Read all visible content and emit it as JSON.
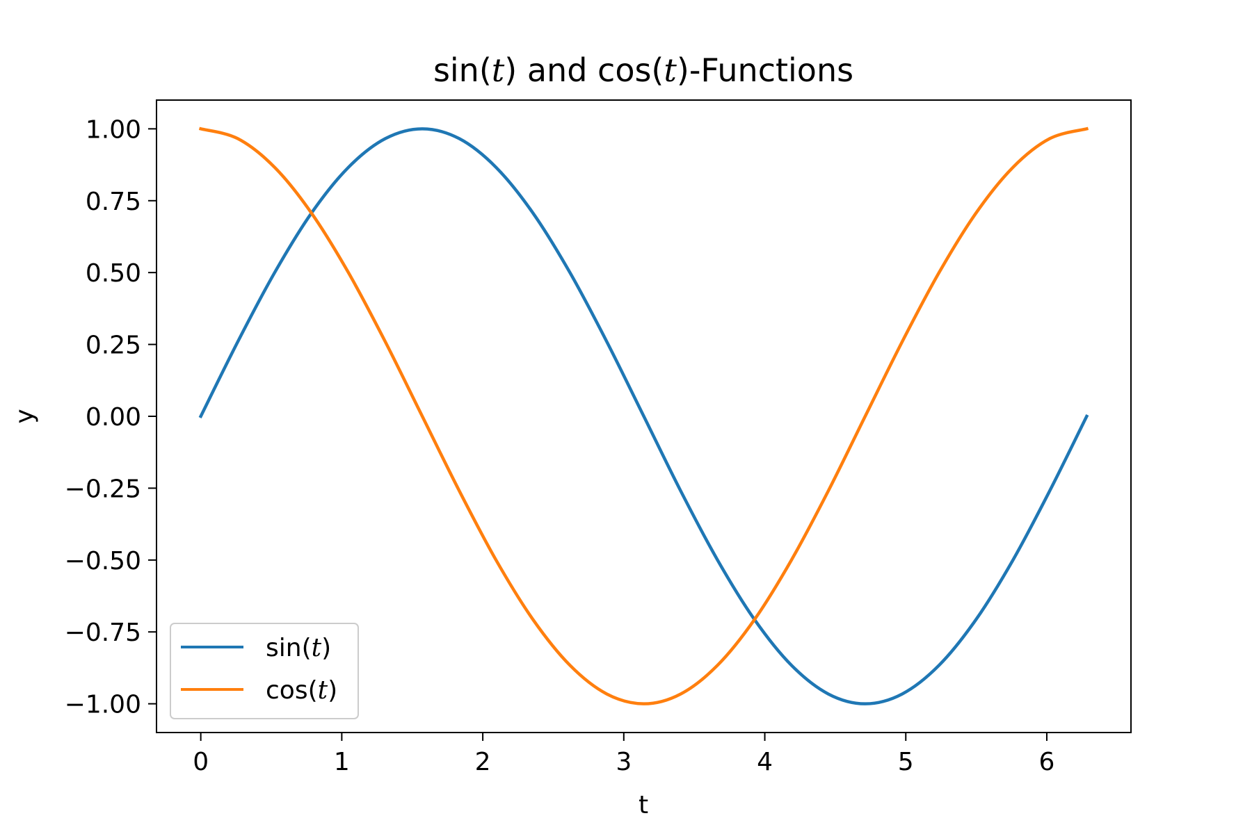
{
  "chart_data": {
    "type": "line",
    "title": {
      "parts": [
        "sin(",
        "t",
        ") and cos(",
        "t",
        ")-Functions"
      ]
    },
    "xlabel": "t",
    "ylabel": "y",
    "xlim": [
      -0.314,
      6.597
    ],
    "ylim": [
      -1.1,
      1.1
    ],
    "xticks": [
      0,
      1,
      2,
      3,
      4,
      5,
      6
    ],
    "xtick_labels": [
      "0",
      "1",
      "2",
      "3",
      "4",
      "5",
      "6"
    ],
    "yticks": [
      1.0,
      0.75,
      0.5,
      0.25,
      0.0,
      -0.25,
      -0.5,
      -0.75,
      -1.0
    ],
    "ytick_labels": [
      "1.00",
      "0.75",
      "0.50",
      "0.25",
      "0.00",
      "−0.25",
      "−0.50",
      "−0.75",
      "−1.00"
    ],
    "grid": false,
    "legend_position": "lower-left",
    "series": [
      {
        "legend_parts": [
          "sin(",
          "t",
          ")"
        ],
        "color": "#1f77b4",
        "x": [
          0,
          0.262,
          0.524,
          0.785,
          1.047,
          1.309,
          1.571,
          1.833,
          2.094,
          2.356,
          2.618,
          2.88,
          3.142,
          3.403,
          3.665,
          3.927,
          4.189,
          4.451,
          4.712,
          4.974,
          5.236,
          5.498,
          5.76,
          6.021,
          6.283
        ],
        "y": [
          0.0,
          0.259,
          0.5,
          0.707,
          0.866,
          0.966,
          1.0,
          0.966,
          0.866,
          0.707,
          0.5,
          0.259,
          0.0,
          -0.259,
          -0.5,
          -0.707,
          -0.866,
          -0.966,
          -1.0,
          -0.966,
          -0.866,
          -0.707,
          -0.5,
          -0.259,
          0.0
        ]
      },
      {
        "legend_parts": [
          "cos(",
          "t",
          ")"
        ],
        "color": "#ff7f0e",
        "x": [
          0,
          0.262,
          0.524,
          0.785,
          1.047,
          1.309,
          1.571,
          1.833,
          2.094,
          2.356,
          2.618,
          2.88,
          3.142,
          3.403,
          3.665,
          3.927,
          4.189,
          4.451,
          4.712,
          4.974,
          5.236,
          5.498,
          5.76,
          6.021,
          6.283
        ],
        "y": [
          1.0,
          0.966,
          0.866,
          0.707,
          0.5,
          0.259,
          0.0,
          -0.259,
          -0.5,
          -0.707,
          -0.866,
          -0.966,
          -1.0,
          -0.966,
          -0.866,
          -0.707,
          -0.5,
          -0.259,
          0.0,
          0.259,
          0.5,
          0.707,
          0.866,
          0.966,
          1.0
        ]
      }
    ]
  }
}
